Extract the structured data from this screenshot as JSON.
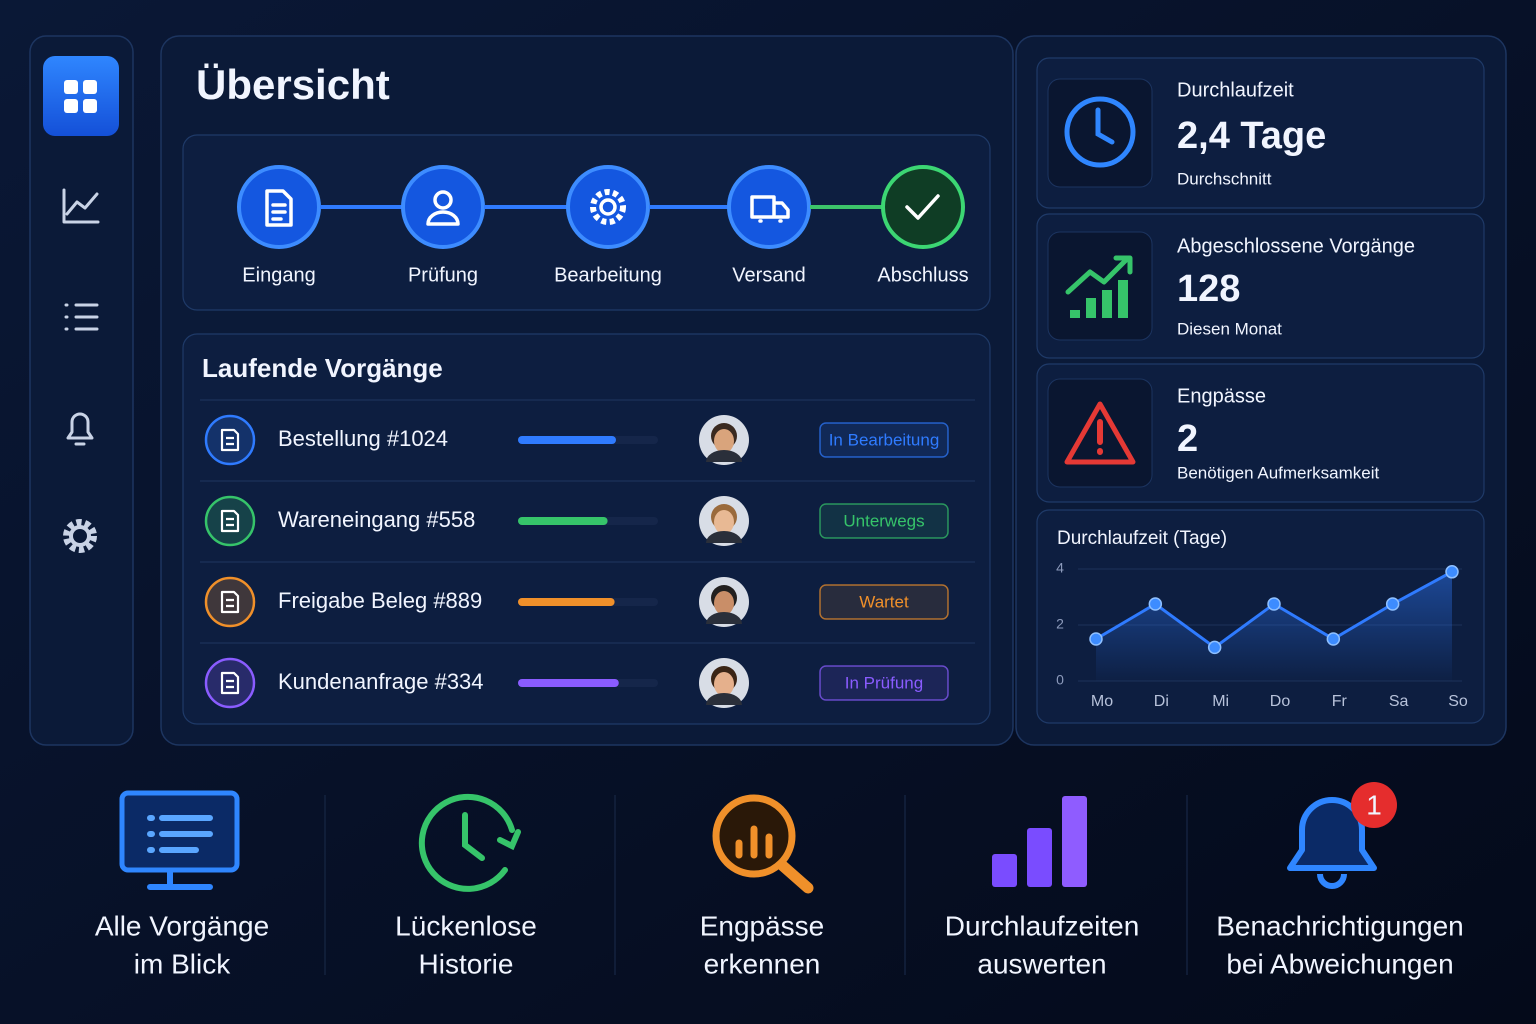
{
  "title": "Übersicht",
  "steps": [
    "Eingang",
    "Prüfung",
    "Bearbeitung",
    "Versand",
    "Abschluss"
  ],
  "running": {
    "title": "Laufende Vorgänge",
    "items": [
      {
        "name": "Bestellung #1024",
        "progress": 70,
        "status": "In Bearbeitung",
        "color": "#2f7bff"
      },
      {
        "name": "Wareneingang #558",
        "progress": 64,
        "status": "Unterwegs",
        "color": "#36c46a"
      },
      {
        "name": "Freigabe Beleg #889",
        "progress": 69,
        "status": "Wartet",
        "color": "#f0902a"
      },
      {
        "name": "Kundenanfrage #334",
        "progress": 72,
        "status": "In Prüfung",
        "color": "#8a5cff"
      }
    ]
  },
  "kpis": [
    {
      "label": "Durchlaufzeit",
      "value": "2,4 Tage",
      "note": "Durchschnitt"
    },
    {
      "label": "Abgeschlossene Vorgänge",
      "value": "128",
      "note": "Diesen Monat"
    },
    {
      "label": "Engpässe",
      "value": "2",
      "note": "Benötigen Aufmerksamkeit"
    }
  ],
  "chart_data": {
    "type": "line",
    "title": "Durchlaufzeit (Tage)",
    "categories": [
      "Mo",
      "Di",
      "Mi",
      "Do",
      "Fr",
      "Sa",
      "So"
    ],
    "values": [
      1.5,
      2.75,
      1.2,
      2.75,
      1.5,
      2.75,
      3.9
    ],
    "ylim": [
      0,
      4
    ],
    "yticks": [
      0,
      2,
      4
    ],
    "grid": true,
    "color": "#2f7bff"
  },
  "features": [
    {
      "lines": [
        "Alle Vorgänge",
        "im Blick"
      ]
    },
    {
      "lines": [
        "Lückenlose",
        "Historie"
      ]
    },
    {
      "lines": [
        "Engpässe",
        "erkennen"
      ]
    },
    {
      "lines": [
        "Durchlaufzeiten",
        "auswerten"
      ]
    },
    {
      "lines": [
        "Benachrichtigungen",
        "bei Abweichungen"
      ]
    }
  ],
  "badge": "1"
}
